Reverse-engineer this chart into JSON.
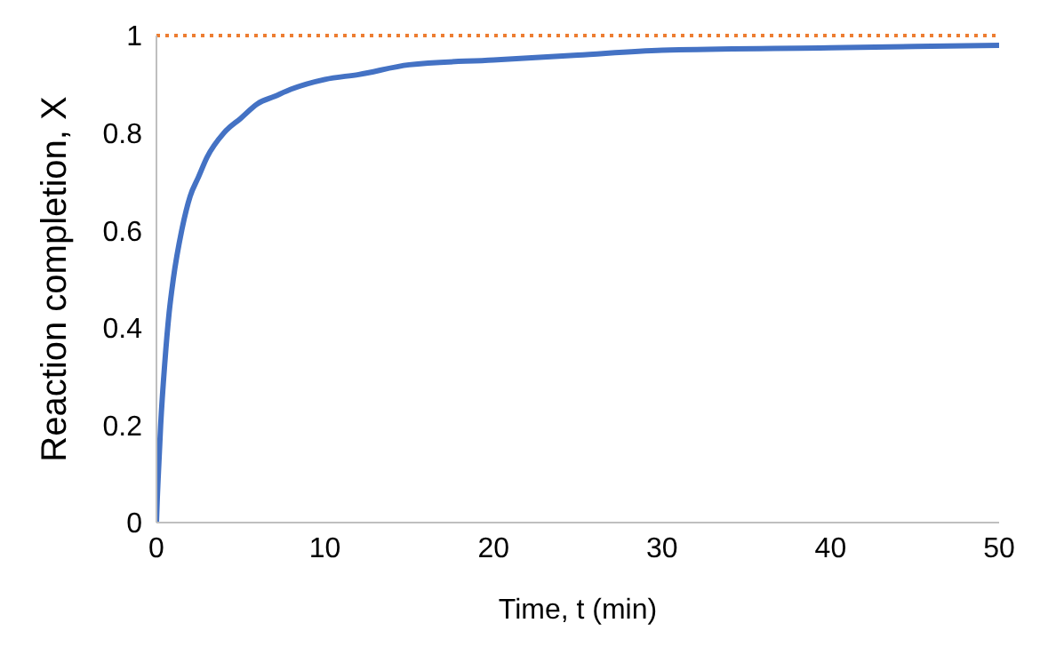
{
  "chart_data": {
    "type": "line",
    "xlabel": "Time, t (min)",
    "ylabel": "Reaction completion, X",
    "series": [
      {
        "color": "#4472c4",
        "x": [
          0,
          0.05,
          0.1,
          0.25,
          0.5,
          0.75,
          1,
          1.5,
          2,
          2.5,
          3,
          4,
          5,
          6,
          7,
          8,
          10,
          12,
          15,
          20,
          25,
          30,
          40,
          50
        ],
        "values": [
          0,
          0.05,
          0.09,
          0.2,
          0.33,
          0.43,
          0.5,
          0.6,
          0.67,
          0.71,
          0.75,
          0.8,
          0.83,
          0.86,
          0.875,
          0.89,
          0.91,
          0.92,
          0.94,
          0.95,
          0.96,
          0.97,
          0.975,
          0.98
        ]
      }
    ],
    "ref_lines": [
      {
        "axis": "y",
        "value": 1,
        "color": "#ed7d31",
        "line_style": "dotted"
      }
    ],
    "xlim": [
      0,
      50
    ],
    "xticks": [
      0,
      10,
      20,
      30,
      40,
      50
    ],
    "ylim": [
      0,
      1
    ],
    "yticks": [
      0,
      0.2,
      0.4,
      0.6,
      0.8,
      1
    ],
    "grid": false,
    "legend": false,
    "marker": "none",
    "line_style": "solid"
  }
}
